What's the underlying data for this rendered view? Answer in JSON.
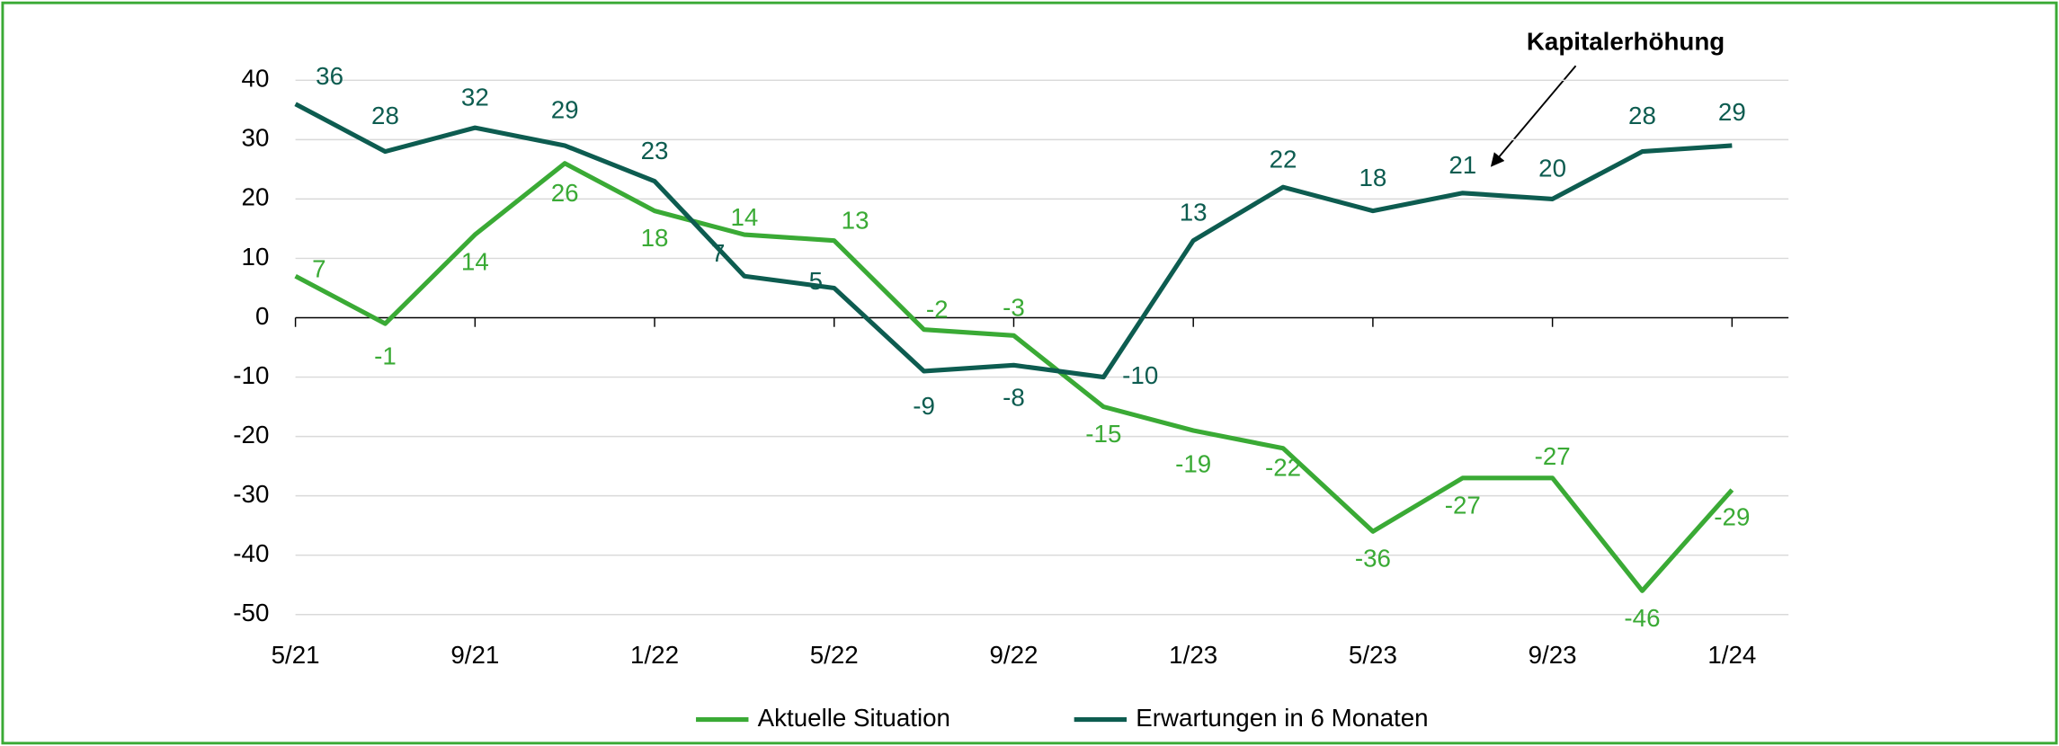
{
  "chart_data": {
    "type": "line",
    "categories": [
      "5/21",
      null,
      "9/21",
      null,
      "1/22",
      null,
      "5/22",
      null,
      "9/22",
      null,
      "1/23",
      null,
      "5/23",
      null,
      "9/23",
      null,
      "1/24"
    ],
    "series": [
      {
        "name": "Aktuelle Situation",
        "color": "#3aaa35",
        "values": [
          7,
          -1,
          14,
          26,
          18,
          14,
          13,
          -2,
          -3,
          -15,
          -19,
          -22,
          -36,
          -27,
          -27,
          -46,
          -29
        ]
      },
      {
        "name": "Erwartungen in 6 Monaten",
        "color": "#0d5c50",
        "values": [
          36,
          28,
          32,
          29,
          23,
          7,
          5,
          -9,
          -8,
          -10,
          13,
          22,
          18,
          21,
          20,
          28,
          29
        ]
      }
    ],
    "ylim": [
      -50,
      40
    ],
    "yticks": [
      -50,
      -40,
      -30,
      -20,
      -10,
      0,
      10,
      20,
      30,
      40
    ],
    "grid": true,
    "annotation": "Kapitalerhöhung",
    "legend": "bottom"
  }
}
